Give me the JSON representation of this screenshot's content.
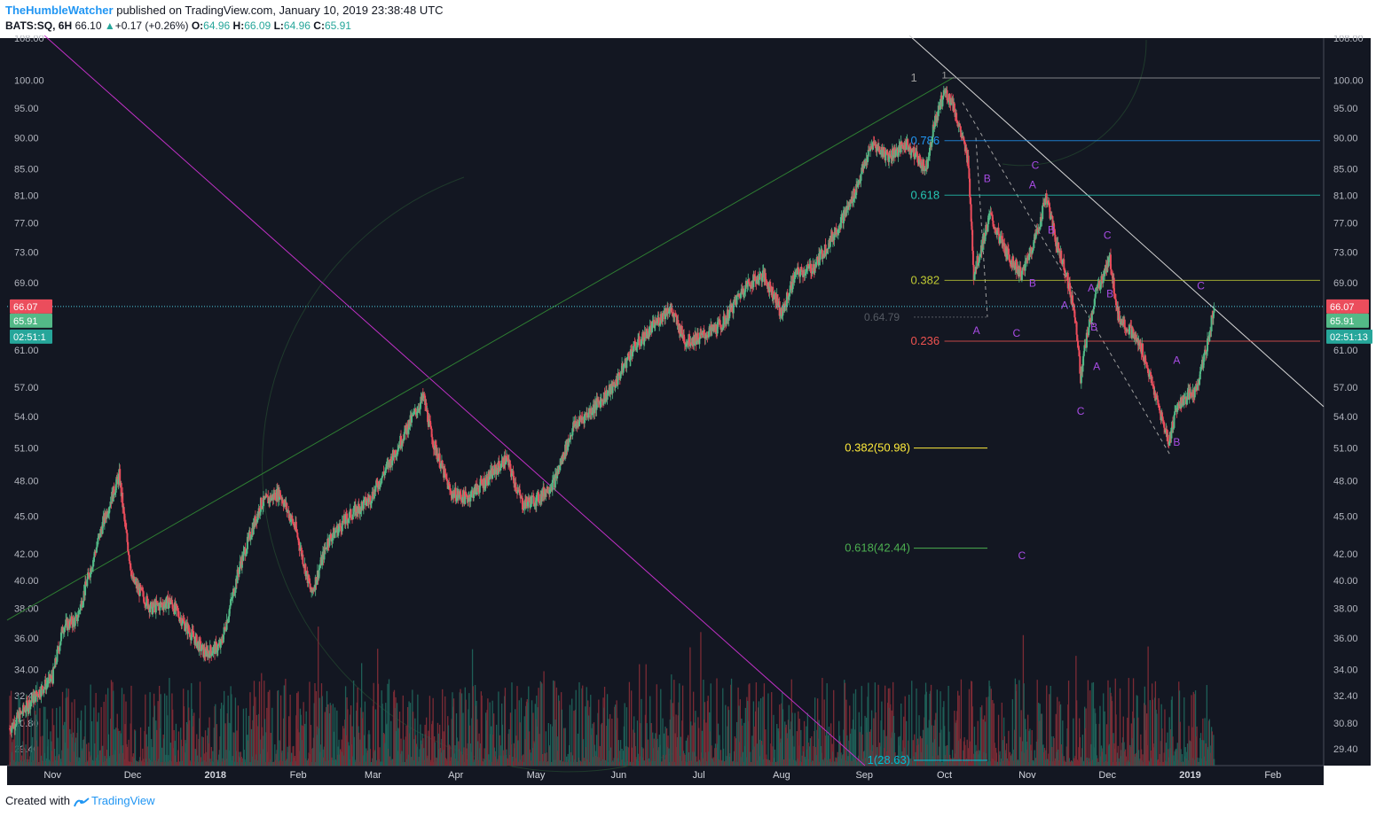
{
  "header": {
    "author": "TheHumbleWatcher",
    "published": "published on TradingView.com, January 10, 2019 23:38:48 UTC",
    "symbol": "BATS:SQ, 6H",
    "last": "66.10",
    "change_arrow": "▲",
    "change": "+0.17 (+0.26%)",
    "o_label": "O:",
    "o": "64.96",
    "h_label": "H:",
    "h": "66.09",
    "l_label": "L:",
    "l": "64.96",
    "c_label": "C:",
    "c": "65.91"
  },
  "footer": {
    "created": "Created with",
    "brand": "TradingView"
  },
  "colors": {
    "background": "#131722",
    "up": "#53b987",
    "down": "#eb4d5c",
    "vol_up": "#1e5f57",
    "vol_down": "#7b2b35",
    "purple": "#a94ce6",
    "magenta": "#c331c9",
    "channel": "#d6d6d6",
    "fib_blue": "#2196f3",
    "fib_teal": "#26c6b4",
    "fib_olive": "#c0ca33",
    "fib_red": "#ef5350",
    "fib_yellow": "#ffeb3b",
    "fib_green": "#4caf50",
    "fib_cyan": "#00bcd4"
  },
  "chart_data": {
    "type": "candlestick",
    "price_axis": {
      "scale": "log",
      "range": [
        28.5,
        108
      ],
      "ticks": [
        "108.00",
        "100.00",
        "95.00",
        "90.00",
        "85.00",
        "81.00",
        "77.00",
        "73.00",
        "69.00",
        "65.00",
        "61.00",
        "57.00",
        "54.00",
        "51.00",
        "48.00",
        "45.00",
        "42.00",
        "40.00",
        "38.00",
        "36.00",
        "34.00",
        "32.40",
        "30.80",
        "29.40"
      ],
      "tick_values": [
        108,
        100,
        95,
        90,
        85,
        81,
        77,
        73,
        69,
        65,
        61,
        57,
        54,
        51,
        48,
        45,
        42,
        40,
        38,
        36,
        34,
        32.4,
        30.8,
        29.4
      ]
    },
    "time_axis": {
      "labels": [
        "Nov",
        "Dec",
        "2018",
        "Feb",
        "Mar",
        "Apr",
        "May",
        "Jun",
        "Jul",
        "Aug",
        "Sep",
        "Oct",
        "Nov",
        "Dec",
        "2019",
        "Feb"
      ],
      "bold": [
        "2018",
        "2019"
      ],
      "range": [
        "2017-10-15",
        "2019-02-20"
      ]
    },
    "price_path": [
      [
        "2017-10-16",
        30.5
      ],
      [
        "2017-10-25",
        32.3
      ],
      [
        "2017-11-01",
        33.5
      ],
      [
        "2017-11-05",
        36.8
      ],
      [
        "2017-11-10",
        37.2
      ],
      [
        "2017-11-20",
        44.5
      ],
      [
        "2017-11-26",
        48.5
      ],
      [
        "2017-11-28",
        44.5
      ],
      [
        "2017-12-01",
        40
      ],
      [
        "2017-12-08",
        38
      ],
      [
        "2017-12-15",
        38.5
      ],
      [
        "2017-12-22",
        36.5
      ],
      [
        "2017-12-28",
        35
      ],
      [
        "2018-01-03",
        35.5
      ],
      [
        "2018-01-10",
        41
      ],
      [
        "2018-01-18",
        46
      ],
      [
        "2018-01-25",
        47
      ],
      [
        "2018-01-31",
        44
      ],
      [
        "2018-02-06",
        39
      ],
      [
        "2018-02-12",
        43
      ],
      [
        "2018-02-20",
        45
      ],
      [
        "2018-02-28",
        46.5
      ],
      [
        "2018-03-08",
        50
      ],
      [
        "2018-03-14",
        53
      ],
      [
        "2018-03-20",
        56
      ],
      [
        "2018-03-23",
        52
      ],
      [
        "2018-03-30",
        47
      ],
      [
        "2018-04-05",
        46.5
      ],
      [
        "2018-04-12",
        48
      ],
      [
        "2018-04-20",
        50
      ],
      [
        "2018-04-26",
        46
      ],
      [
        "2018-05-02",
        46.5
      ],
      [
        "2018-05-08",
        48
      ],
      [
        "2018-05-15",
        53
      ],
      [
        "2018-05-23",
        55
      ],
      [
        "2018-05-30",
        57
      ],
      [
        "2018-06-06",
        61
      ],
      [
        "2018-06-12",
        63
      ],
      [
        "2018-06-20",
        66
      ],
      [
        "2018-06-26",
        62
      ],
      [
        "2018-07-02",
        62.5
      ],
      [
        "2018-07-10",
        64
      ],
      [
        "2018-07-18",
        68.5
      ],
      [
        "2018-07-25",
        70
      ],
      [
        "2018-07-30",
        67
      ],
      [
        "2018-08-01",
        65
      ],
      [
        "2018-08-06",
        70
      ],
      [
        "2018-08-13",
        71
      ],
      [
        "2018-08-20",
        75
      ],
      [
        "2018-08-27",
        80
      ],
      [
        "2018-09-04",
        89
      ],
      [
        "2018-09-10",
        87
      ],
      [
        "2018-09-17",
        89
      ],
      [
        "2018-09-24",
        85
      ],
      [
        "2018-09-27",
        92
      ],
      [
        "2018-10-01",
        98
      ],
      [
        "2018-10-04",
        96
      ],
      [
        "2018-10-10",
        86
      ],
      [
        "2018-10-12",
        70
      ],
      [
        "2018-10-18",
        78
      ],
      [
        "2018-10-24",
        73
      ],
      [
        "2018-10-30",
        70
      ],
      [
        "2018-11-05",
        76
      ],
      [
        "2018-11-08",
        81
      ],
      [
        "2018-11-12",
        74
      ],
      [
        "2018-11-15",
        71
      ],
      [
        "2018-11-19",
        65
      ],
      [
        "2018-11-21",
        58
      ],
      [
        "2018-11-23",
        62
      ],
      [
        "2018-11-27",
        68
      ],
      [
        "2018-12-02",
        72
      ],
      [
        "2018-12-05",
        65
      ],
      [
        "2018-12-10",
        63
      ],
      [
        "2018-12-14",
        61
      ],
      [
        "2018-12-18",
        57
      ],
      [
        "2018-12-24",
        51.5
      ],
      [
        "2018-12-27",
        55
      ],
      [
        "2018-12-31",
        56
      ],
      [
        "2019-01-03",
        56.5
      ],
      [
        "2019-01-07",
        61
      ],
      [
        "2019-01-10",
        65.91
      ]
    ],
    "current_price": 66.07,
    "last_close": 65.91,
    "countdown": "02:51:13",
    "price_labels": {
      "current": "66.07",
      "close": "65.91",
      "countdown": "02:51:13",
      "countdown_left": "02:51:1"
    },
    "fib_levels": [
      {
        "label": "1",
        "value": 100.4,
        "color": "#9e9e9e"
      },
      {
        "label": "0.786",
        "value": 89.5,
        "color": "#2196f3"
      },
      {
        "label": "0.618",
        "value": 81.0,
        "color": "#26c6b4"
      },
      {
        "label": "0.382",
        "value": 69.3,
        "color": "#c0ca33"
      },
      {
        "label": "0.236",
        "value": 62.0,
        "color": "#ef5350"
      }
    ],
    "fib_hidden_label": "0.64.79",
    "fib_extension": [
      {
        "label": "0.382(50.98)",
        "value": 50.98,
        "color": "#ffeb3b"
      },
      {
        "label": "0.618(42.44)",
        "value": 42.44,
        "color": "#4caf50"
      },
      {
        "label": "1(28.63)",
        "value": 28.63,
        "color": "#00bcd4"
      }
    ],
    "wave_labels": [
      {
        "text": "B",
        "date": "2018-10-17",
        "price": 83
      },
      {
        "text": "A",
        "date": "2018-10-13",
        "price": 62.8
      },
      {
        "text": "C",
        "date": "2018-11-04",
        "price": 85
      },
      {
        "text": "A",
        "date": "2018-11-03",
        "price": 82
      },
      {
        "text": "C",
        "date": "2018-10-28",
        "price": 62.5
      },
      {
        "text": "B",
        "date": "2018-11-10",
        "price": 75.5
      },
      {
        "text": "B",
        "date": "2018-11-03",
        "price": 68.5
      },
      {
        "text": "A",
        "date": "2018-11-15",
        "price": 65.8
      },
      {
        "text": "C",
        "date": "2018-12-01",
        "price": 74.8
      },
      {
        "text": "A",
        "date": "2018-11-25",
        "price": 67.9
      },
      {
        "text": "B",
        "date": "2018-11-26",
        "price": 63.2
      },
      {
        "text": "B",
        "date": "2018-12-02",
        "price": 67.2
      },
      {
        "text": "A",
        "date": "2018-11-27",
        "price": 58.8
      },
      {
        "text": "C",
        "date": "2018-11-21",
        "price": 54.2
      },
      {
        "text": "A",
        "date": "2018-12-27",
        "price": 59.5
      },
      {
        "text": "B",
        "date": "2018-12-27",
        "price": 51.2
      },
      {
        "text": "C",
        "date": "2019-01-05",
        "price": 68.2
      },
      {
        "text": "C",
        "date": "2018-10-30",
        "price": 41.6
      }
    ],
    "fib_anchor_label": "1"
  }
}
